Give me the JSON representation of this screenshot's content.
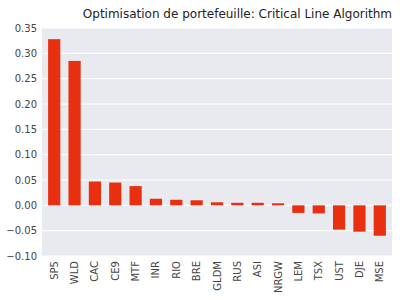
{
  "chart_data": {
    "type": "bar",
    "title": "Optimisation de portefeuille: Critical Line Algorithm",
    "categories": [
      "SP5",
      "WLD",
      "CAC",
      "CE9",
      "MTF",
      "INR",
      "RIO",
      "BRE",
      "GLDM",
      "RUS",
      "ASI",
      "NRGW",
      "LEM",
      "TSX",
      "UST",
      "DJE",
      "MSE"
    ],
    "values": [
      0.328,
      0.285,
      0.047,
      0.045,
      0.038,
      0.013,
      0.011,
      0.01,
      0.006,
      0.005,
      0.005,
      0.004,
      -0.015,
      -0.016,
      -0.048,
      -0.052,
      -0.06
    ],
    "color": "#e83010",
    "ylim": [
      -0.1,
      0.35
    ],
    "yticks": [
      {
        "value": -0.1,
        "label": "−0.10"
      },
      {
        "value": -0.05,
        "label": "−0.05"
      },
      {
        "value": 0.0,
        "label": "0.00"
      },
      {
        "value": 0.05,
        "label": "0.05"
      },
      {
        "value": 0.1,
        "label": "0.10"
      },
      {
        "value": 0.15,
        "label": "0.15"
      },
      {
        "value": 0.2,
        "label": "0.20"
      },
      {
        "value": 0.25,
        "label": "0.25"
      },
      {
        "value": 0.3,
        "label": "0.30"
      },
      {
        "value": 0.35,
        "label": "0.35"
      }
    ],
    "grid": true
  }
}
